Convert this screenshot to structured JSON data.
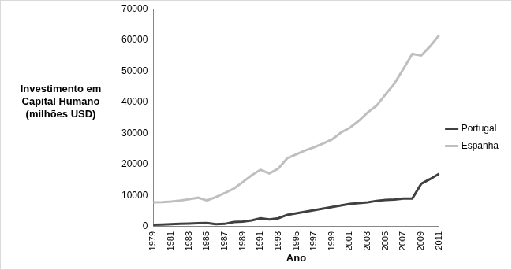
{
  "chart_data": {
    "type": "line",
    "x_label": "Ano",
    "y_label": [
      "Investimento em",
      "Capital Humano",
      "(milhões USD)"
    ],
    "categories": [
      "1979",
      null,
      "1981",
      null,
      "1983",
      null,
      "1985",
      null,
      "1987",
      null,
      "1989",
      null,
      "1991",
      null,
      "1993",
      null,
      "1995",
      null,
      "1997",
      null,
      "1999",
      null,
      "2001",
      null,
      "2003",
      null,
      "2005",
      null,
      "2007",
      null,
      "2009",
      null,
      "2011"
    ],
    "series": [
      {
        "name": "Portugal",
        "color": "#404040",
        "values": [
          600,
          700,
          800,
          900,
          1000,
          1100,
          1200,
          800,
          900,
          1500,
          1600,
          2000,
          2700,
          2300,
          2700,
          3800,
          4300,
          4800,
          5300,
          5800,
          6300,
          6800,
          7300,
          7600,
          7800,
          8300,
          8600,
          8700,
          9000,
          9000,
          13800,
          15300,
          17000
        ]
      },
      {
        "name": "Espanha",
        "color": "#bfbfbf",
        "values": [
          7800,
          7900,
          8100,
          8400,
          8800,
          9300,
          8400,
          9500,
          10800,
          12200,
          14300,
          16500,
          18300,
          17100,
          18700,
          22000,
          23200,
          24500,
          25500,
          26700,
          28000,
          30200,
          31800,
          34000,
          36700,
          38900,
          42500,
          46000,
          50700,
          55500,
          55000,
          58000,
          61500
        ]
      }
    ],
    "ylim": [
      0,
      70000
    ],
    "yticks": [
      0,
      10000,
      20000,
      30000,
      40000,
      50000,
      60000,
      70000
    ],
    "grid": false,
    "legend": "right"
  }
}
